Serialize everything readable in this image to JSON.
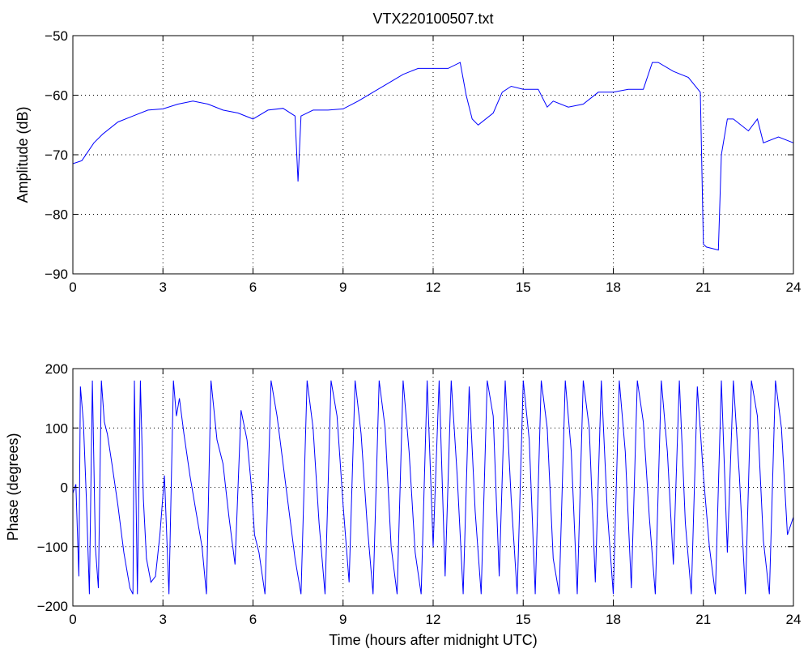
{
  "chart_data": [
    {
      "type": "line",
      "title": "VTX220100507.txt",
      "xlabel": "",
      "ylabel": "Amplitude (dB)",
      "xlim": [
        0,
        24
      ],
      "ylim": [
        -90,
        -50
      ],
      "xticks": [
        0,
        3,
        6,
        9,
        12,
        15,
        18,
        21,
        24
      ],
      "yticks": [
        -90,
        -80,
        -70,
        -60,
        -50
      ],
      "grid": true,
      "line_color": "#0000ff",
      "series": [
        {
          "x": [
            0,
            0.3,
            0.7,
            1,
            1.5,
            2,
            2.5,
            3,
            3.5,
            4,
            4.5,
            5,
            5.5,
            6,
            6.5,
            7,
            7.4,
            7.5,
            7.6,
            8,
            8.5,
            9,
            9.5,
            10,
            10.5,
            11,
            11.5,
            12,
            12.5,
            12.9,
            13.1,
            13.3,
            13.5,
            14,
            14.3,
            14.6,
            15,
            15.5,
            15.8,
            16,
            16.5,
            17,
            17.5,
            18,
            18.5,
            19,
            19.3,
            19.5,
            20,
            20.5,
            20.9,
            21,
            21.1,
            21.5,
            21.6,
            21.8,
            22,
            22.5,
            22.8,
            23,
            23.5,
            24
          ],
          "y": [
            -71.5,
            -71,
            -68,
            -66.5,
            -64.5,
            -63.5,
            -62.5,
            -62.3,
            -61.5,
            -61,
            -61.5,
            -62.5,
            -63,
            -64,
            -62.5,
            -62.2,
            -63.5,
            -74.5,
            -63.5,
            -62.5,
            -62.5,
            -62.3,
            -61,
            -59.5,
            -58,
            -56.5,
            -55.5,
            -55.5,
            -55.5,
            -54.5,
            -60,
            -64,
            -65,
            -63,
            -59.5,
            -58.5,
            -59,
            -59,
            -62,
            -61,
            -62,
            -61.5,
            -59.5,
            -59.5,
            -59,
            -59,
            -54.5,
            -54.5,
            -56,
            -57,
            -59.5,
            -85,
            -85.5,
            -86,
            -70,
            -64,
            -64,
            -66,
            -64,
            -68,
            -67,
            -68
          ]
        }
      ]
    },
    {
      "type": "line",
      "title": "",
      "xlabel": "Time (hours after midnight UTC)",
      "ylabel": "Phase (degrees)",
      "xlim": [
        0,
        24
      ],
      "ylim": [
        -200,
        200
      ],
      "xticks": [
        0,
        3,
        6,
        9,
        12,
        15,
        18,
        21,
        24
      ],
      "yticks": [
        -200,
        -100,
        0,
        100,
        200
      ],
      "grid": true,
      "line_color": "#0000ff",
      "series": [
        {
          "x": [
            0,
            0.1,
            0.2,
            0.25,
            0.35,
            0.45,
            0.55,
            0.65,
            0.75,
            0.85,
            0.95,
            1.05,
            1.15,
            1.3,
            1.5,
            1.7,
            1.9,
            2.0,
            2.05,
            2.15,
            2.25,
            2.35,
            2.45,
            2.6,
            2.75,
            2.9,
            3.05,
            3.2,
            3.35,
            3.45,
            3.55,
            3.7,
            3.9,
            4.1,
            4.3,
            4.45,
            4.6,
            4.8,
            5.0,
            5.2,
            5.4,
            5.6,
            5.8,
            5.95,
            6.05,
            6.2,
            6.4,
            6.6,
            6.8,
            7.0,
            7.2,
            7.4,
            7.6,
            7.8,
            8.0,
            8.2,
            8.4,
            8.6,
            8.8,
            9.0,
            9.2,
            9.4,
            9.6,
            9.8,
            10.0,
            10.2,
            10.4,
            10.6,
            10.8,
            11.0,
            11.2,
            11.4,
            11.6,
            11.8,
            12.0,
            12.2,
            12.4,
            12.6,
            12.8,
            13.0,
            13.2,
            13.4,
            13.6,
            13.8,
            14.0,
            14.2,
            14.4,
            14.6,
            14.8,
            15.0,
            15.2,
            15.4,
            15.6,
            15.8,
            16.0,
            16.2,
            16.4,
            16.6,
            16.8,
            17.0,
            17.2,
            17.4,
            17.6,
            17.8,
            18.0,
            18.2,
            18.4,
            18.6,
            18.8,
            19.0,
            19.2,
            19.4,
            19.6,
            19.8,
            20.0,
            20.2,
            20.4,
            20.6,
            20.8,
            21.0,
            21.2,
            21.4,
            21.6,
            21.8,
            22.0,
            22.2,
            22.4,
            22.6,
            22.8,
            23.0,
            23.2,
            23.4,
            23.6,
            23.8,
            24.0
          ],
          "y": [
            -10,
            5,
            -150,
            170,
            110,
            -20,
            -180,
            180,
            -100,
            -170,
            180,
            110,
            90,
            40,
            -30,
            -110,
            -170,
            -180,
            180,
            -180,
            180,
            -20,
            -120,
            -160,
            -150,
            -80,
            20,
            -180,
            180,
            120,
            150,
            90,
            20,
            -40,
            -100,
            -180,
            180,
            80,
            40,
            -50,
            -130,
            130,
            80,
            0,
            -80,
            -110,
            -180,
            180,
            120,
            40,
            -40,
            -120,
            -180,
            180,
            100,
            -60,
            -180,
            180,
            120,
            -30,
            -160,
            180,
            90,
            -60,
            -180,
            180,
            100,
            -100,
            -180,
            180,
            60,
            -110,
            -180,
            180,
            -100,
            180,
            -150,
            180,
            20,
            -180,
            170,
            -40,
            -180,
            180,
            120,
            -150,
            180,
            -20,
            -180,
            180,
            80,
            -180,
            180,
            100,
            -120,
            -180,
            180,
            60,
            -180,
            180,
            100,
            -160,
            180,
            -40,
            -180,
            180,
            60,
            -170,
            180,
            110,
            -50,
            -180,
            180,
            60,
            -130,
            180,
            -60,
            -180,
            170,
            20,
            -100,
            -180,
            180,
            -110,
            180,
            20,
            -180,
            180,
            120,
            -90,
            -180,
            180,
            100,
            -80,
            -50
          ]
        }
      ]
    }
  ]
}
